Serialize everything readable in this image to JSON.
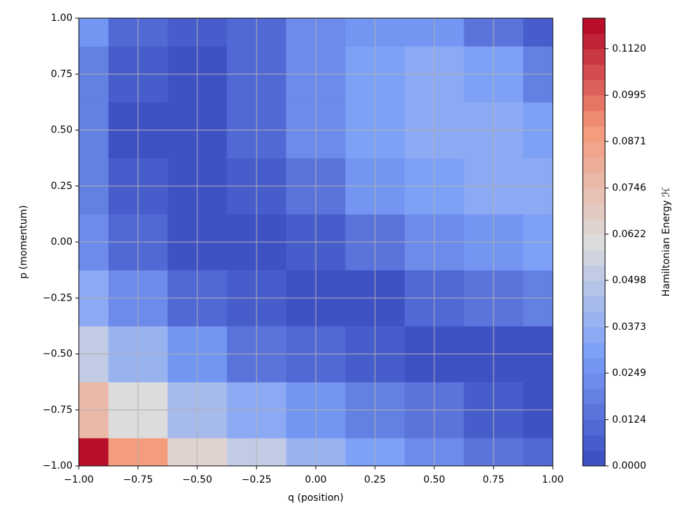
{
  "chart_data": {
    "type": "contour",
    "xlabel": "q (position)",
    "ylabel": "p (momentum)",
    "colorbar_label": "Hamiltonian Energy ℋ",
    "x": [
      -1,
      -0.75,
      -0.5,
      -0.25,
      0,
      0.25,
      0.5,
      0.75,
      1
    ],
    "y": [
      -1,
      -0.75,
      -0.5,
      -0.25,
      0,
      0.25,
      0.5,
      0.75,
      1
    ],
    "z": [
      [
        0.118,
        0.088,
        0.066,
        0.05,
        0.038,
        0.03,
        0.024,
        0.016,
        0.01
      ],
      [
        0.075,
        0.06,
        0.045,
        0.034,
        0.026,
        0.02,
        0.014,
        0.008,
        0.004
      ],
      [
        0.05,
        0.038,
        0.026,
        0.016,
        0.01,
        0.006,
        0.002,
        0.002,
        0.003
      ],
      [
        0.034,
        0.022,
        0.012,
        0.006,
        0.002,
        0.004,
        0.01,
        0.016,
        0.02
      ],
      [
        0.024,
        0.012,
        0.004,
        0.002,
        0.006,
        0.014,
        0.022,
        0.028,
        0.03
      ],
      [
        0.02,
        0.006,
        0.002,
        0.006,
        0.016,
        0.026,
        0.032,
        0.036,
        0.034
      ],
      [
        0.018,
        0.003,
        0.004,
        0.012,
        0.022,
        0.03,
        0.036,
        0.036,
        0.03
      ],
      [
        0.02,
        0.006,
        0.004,
        0.012,
        0.024,
        0.03,
        0.034,
        0.03,
        0.02
      ],
      [
        0.025,
        0.012,
        0.006,
        0.012,
        0.022,
        0.028,
        0.025,
        0.015,
        0.006
      ]
    ],
    "xlim": [
      -1,
      1
    ],
    "ylim": [
      -1,
      1
    ],
    "xticks": [
      {
        "value": -1,
        "label": "−1.00"
      },
      {
        "value": -0.75,
        "label": "−0.75"
      },
      {
        "value": -0.5,
        "label": "−0.50"
      },
      {
        "value": -0.25,
        "label": "−0.25"
      },
      {
        "value": 0,
        "label": "0.00"
      },
      {
        "value": 0.25,
        "label": "0.25"
      },
      {
        "value": 0.5,
        "label": "0.50"
      },
      {
        "value": 0.75,
        "label": "0.75"
      },
      {
        "value": 1,
        "label": "1.00"
      }
    ],
    "yticks": [
      {
        "value": -1,
        "label": "−1.00"
      },
      {
        "value": -0.75,
        "label": "−0.75"
      },
      {
        "value": -0.5,
        "label": "−0.50"
      },
      {
        "value": -0.25,
        "label": "−0.25"
      },
      {
        "value": 0,
        "label": "0.00"
      },
      {
        "value": 0.25,
        "label": "0.25"
      },
      {
        "value": 0.5,
        "label": "0.50"
      },
      {
        "value": 0.75,
        "label": "0.75"
      },
      {
        "value": 1,
        "label": "1.00"
      }
    ],
    "clim": [
      0,
      0.1202
    ],
    "levels": 29,
    "cticks": [
      {
        "value": 0,
        "label": "0.0000"
      },
      0.0124,
      0.0249,
      0.0373,
      0.0498,
      0.0622,
      0.0746,
      0.0871,
      0.0995,
      {
        "value": 0.112,
        "label": "0.1120"
      }
    ],
    "colormap": [
      "#3b4cc0",
      "#7b9ff9",
      "#dddcdc",
      "#f49a7b",
      "#b40426"
    ],
    "grid": true
  }
}
